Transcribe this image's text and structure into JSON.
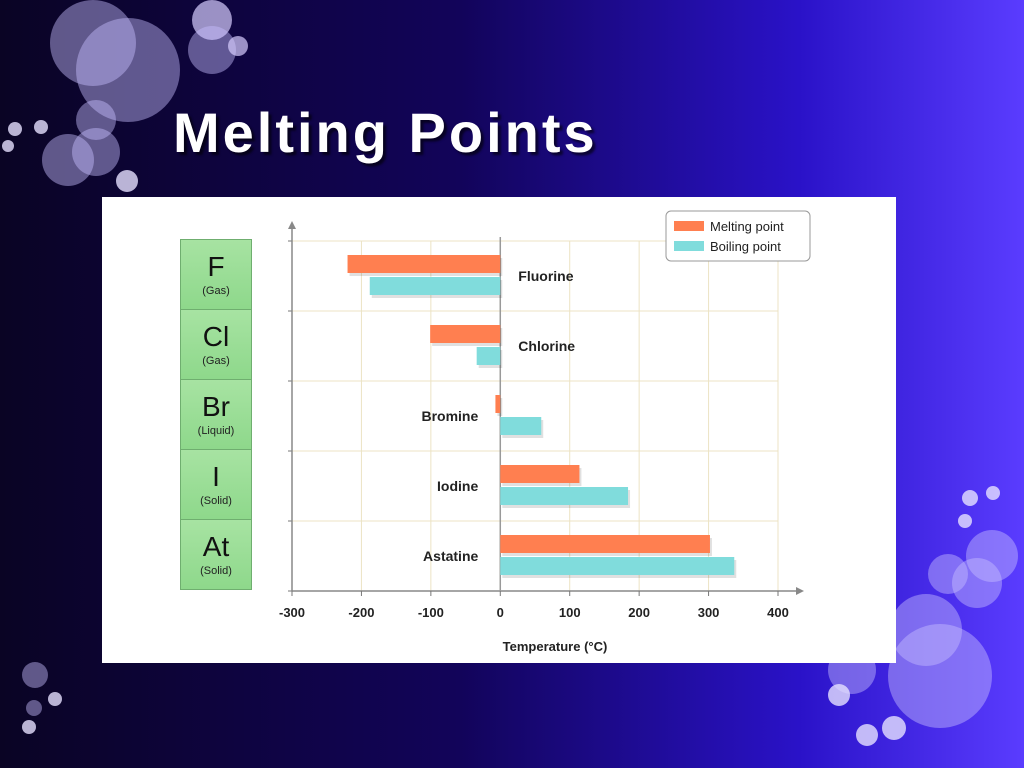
{
  "slide": {
    "title": "Melting Points"
  },
  "elements": [
    {
      "symbol": "F",
      "state": "(Gas)"
    },
    {
      "symbol": "Cl",
      "state": "(Gas)"
    },
    {
      "symbol": "Br",
      "state": "(Liquid)"
    },
    {
      "symbol": "I",
      "state": "(Solid)"
    },
    {
      "symbol": "At",
      "state": "(Solid)"
    }
  ],
  "chart_data": {
    "type": "bar",
    "orientation": "horizontal",
    "categories": [
      "Fluorine",
      "Chlorine",
      "Bromine",
      "Iodine",
      "Astatine"
    ],
    "series": [
      {
        "name": "Melting point",
        "color": "#ff7f50",
        "values": [
          -220,
          -101,
          -7,
          114,
          302
        ]
      },
      {
        "name": "Boiling point",
        "color": "#80dcdc",
        "values": [
          -188,
          -34,
          59,
          184,
          337
        ]
      }
    ],
    "xlabel": "Temperature (°C)",
    "ylabel": "",
    "xlim": [
      -300,
      400
    ],
    "xticks": [
      "-300",
      "-200",
      "-100",
      "0",
      "100",
      "200",
      "300",
      "400"
    ],
    "grid": true,
    "legend_position": "top-right"
  }
}
